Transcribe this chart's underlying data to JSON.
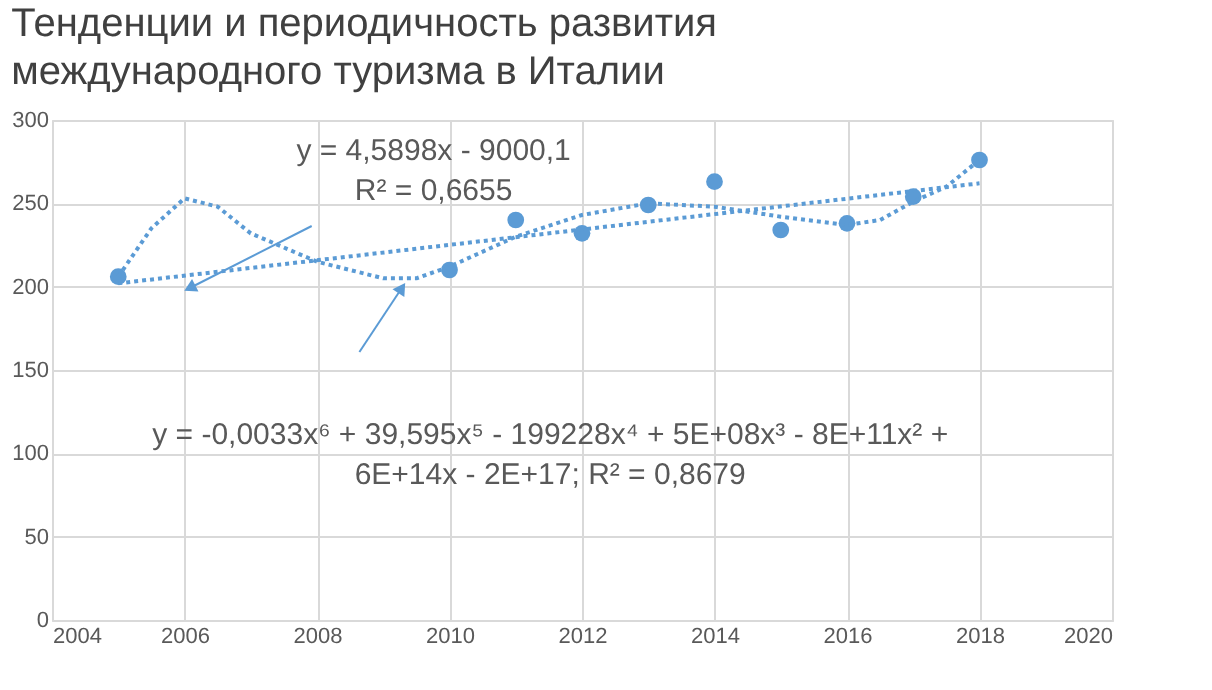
{
  "chart_data": {
    "type": "scatter",
    "title": "Тенденции и периодичность развития международного туризма в Италии",
    "series": [
      {
        "color": "#5b9bd5",
        "marker": "circle",
        "x": [
          2005,
          2010,
          2011,
          2012,
          2013,
          2014,
          2015,
          2016,
          2017,
          2018
        ],
        "values": [
          206,
          210,
          240,
          232,
          249,
          263,
          234,
          238,
          254,
          276
        ]
      },
      {
        "type": "line",
        "color": "#5b9bd5",
        "line_style": "dotted",
        "marker": "none",
        "x": [
          2005,
          2018
        ],
        "values": [
          202,
          262
        ]
      },
      {
        "type": "line",
        "color": "#5b9bd5",
        "line_style": "dotted",
        "marker": "none",
        "x": [
          2005,
          2005.5,
          2006,
          2006.5,
          2007,
          2008,
          2009,
          2009.5,
          2010,
          2011,
          2012,
          2013,
          2014,
          2015,
          2016,
          2016.5,
          2017,
          2017.5,
          2018
        ],
        "values": [
          206,
          235,
          253,
          248,
          232,
          215,
          205,
          205,
          212,
          230,
          243,
          250,
          248,
          242,
          237,
          240,
          251,
          260,
          276
        ]
      }
    ],
    "annotations": [
      "y = 4,5898x - 9000,1 R² = 0,6655",
      "y = -0,0033x⁶ + 39,595x⁵ - 199228x⁴ + 5E+08x³ - 8E+11x² + 6E+14x - 2E+17; R² = 0,8679"
    ],
    "xlim": [
      2004,
      2020
    ],
    "xticks": [
      2004,
      2006,
      2008,
      2010,
      2012,
      2014,
      2016,
      2018,
      2020
    ],
    "ylim": [
      0,
      300
    ],
    "yticks": [
      0,
      50,
      100,
      150,
      200,
      250,
      300
    ],
    "grid": true,
    "legend": false
  }
}
